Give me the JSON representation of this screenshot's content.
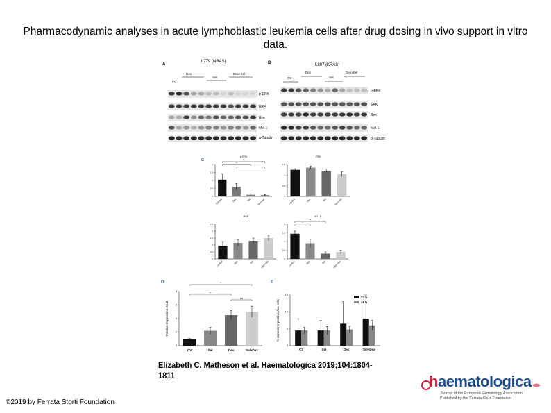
{
  "slide": {
    "title": "Pharmacodynamic analyses in acute lymphoblastic leukemia cells after drug dosing in vivo support in vitro data.",
    "citation": "Elizabeth C. Matheson et al. Haematologica 2019;104:1804-1811",
    "copyright": "©2019 by Ferrata Storti Foundation"
  },
  "logo": {
    "word_h": "h",
    "word_rest": "aematologica",
    "line1": "Journal of the European Hematology Association",
    "line2": "Published by the Ferrata Storti Foundation"
  },
  "panelA": {
    "letter": "A",
    "title": "L779 (NRAS)",
    "groups": [
      "CV",
      "Dex",
      "Sel",
      "Dex+Sel"
    ],
    "bands": [
      "p-ERK",
      "ERK",
      "Bim",
      "Mcl-1",
      "α-Tubulin"
    ]
  },
  "panelB": {
    "letter": "B",
    "title": "L897 (KRAS)",
    "groups": [
      "CV",
      "Dex",
      "Sel",
      "Dex+Sel"
    ],
    "bands": [
      "p-ERK",
      "ERK",
      "Bim",
      "Mcl-1",
      "α-Tubulin"
    ]
  },
  "panelC": {
    "letter": "C"
  },
  "panelD": {
    "letter": "D"
  },
  "panelE": {
    "letter": "E"
  },
  "chart_data": [
    {
      "type": "bar",
      "title": "p-ERK",
      "categories": [
        "Control",
        "Dex",
        "Sel",
        "Dex+Sel"
      ],
      "values": [
        1.05,
        0.6,
        0.1,
        0.08
      ],
      "errors": [
        0.35,
        0.2,
        0.05,
        0.04
      ],
      "ylim": [
        0,
        2.0
      ],
      "yticks": [
        0,
        0.5,
        1.0,
        1.5,
        2.0
      ],
      "colors": [
        "#111111",
        "#777777",
        "#777777",
        "#777777"
      ],
      "significance": [
        "**",
        "**",
        "*"
      ]
    },
    {
      "type": "bar",
      "title": "ERK",
      "categories": [
        "Control",
        "Dex",
        "Sel",
        "Dex+Sel"
      ],
      "values": [
        1.25,
        1.35,
        1.2,
        1.05
      ],
      "errors": [
        0.05,
        0.07,
        0.08,
        0.12
      ],
      "ylim": [
        0,
        1.5
      ],
      "yticks": [
        0,
        0.5,
        1.0,
        1.5
      ],
      "colors": [
        "#111111",
        "#888888",
        "#666666",
        "#cccccc"
      ],
      "significance": []
    },
    {
      "type": "bar",
      "title": "BIM",
      "categories": [
        "Control",
        "Dex",
        "Sel",
        "Dex+Sel"
      ],
      "values": [
        0.95,
        1.15,
        1.3,
        1.5
      ],
      "errors": [
        0.3,
        0.25,
        0.2,
        0.2
      ],
      "ylim": [
        0,
        2.5
      ],
      "yticks": [
        0,
        0.5,
        1.0,
        1.5,
        2.0,
        2.5
      ],
      "colors": [
        "#111111",
        "#888888",
        "#666666",
        "#cccccc"
      ],
      "significance": []
    },
    {
      "type": "bar",
      "title": "MCL1",
      "categories": [
        "Control",
        "Dex",
        "Sel",
        "Dex+Sel"
      ],
      "values": [
        1.45,
        0.9,
        0.3,
        0.4
      ],
      "errors": [
        0.15,
        0.25,
        0.1,
        0.1
      ],
      "ylim": [
        0,
        2.0
      ],
      "yticks": [
        0,
        0.5,
        1.0,
        1.5,
        2.0
      ],
      "colors": [
        "#111111",
        "#888888",
        "#666666",
        "#cccccc"
      ],
      "significance": [
        "**",
        "*"
      ]
    },
    {
      "type": "bar",
      "ylabel": "Relative Expression GILZ",
      "categories": [
        "CV",
        "Sel",
        "Dex",
        "Sel+Dex"
      ],
      "values": [
        1.0,
        2.2,
        4.5,
        5.0
      ],
      "errors": [
        0.1,
        0.5,
        0.7,
        0.8
      ],
      "ylim": [
        0,
        8
      ],
      "yticks": [
        0,
        2,
        4,
        6,
        8
      ],
      "colors": [
        "#111111",
        "#888888",
        "#666666",
        "#cccccc"
      ],
      "significance": [
        "**",
        "**",
        "ns"
      ]
    },
    {
      "type": "bar",
      "ylabel": "% Annexin V positive ALL cells",
      "categories": [
        "CV",
        "Sel",
        "Dex",
        "Sel+Dex"
      ],
      "series": [
        {
          "name": "24 h",
          "values": [
            4.5,
            4.5,
            6.5,
            8.0
          ],
          "errors": [
            3.5,
            3.0,
            6.5,
            7.0
          ]
        },
        {
          "name": "48 h",
          "values": [
            4.5,
            4.5,
            4.8,
            6.0
          ],
          "errors": [
            1.0,
            1.2,
            1.0,
            1.5
          ]
        }
      ],
      "ylim": [
        0,
        15
      ],
      "yticks": [
        0,
        5,
        10,
        15
      ],
      "colors": [
        "#111111",
        "#888888"
      ]
    }
  ]
}
